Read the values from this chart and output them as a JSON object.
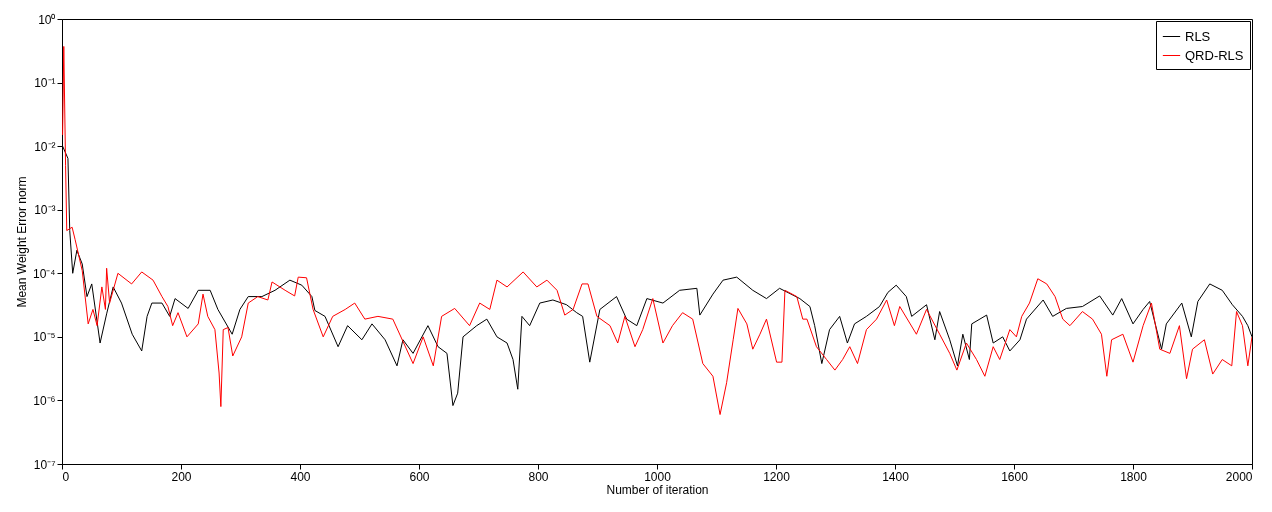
{
  "chart_data": {
    "type": "line",
    "xlabel": "Number of iteration",
    "ylabel": "Mean Weight Error norm",
    "log": true,
    "legend": "top right",
    "xlim": [
      0,
      2000
    ],
    "xticks": [
      0,
      200,
      400,
      600,
      800,
      1000,
      1200,
      1400,
      1600,
      1800,
      2000
    ],
    "ylim": [
      1e-07,
      1
    ],
    "yticks": [
      {
        "value": 1e-07,
        "label": "10⁻⁷"
      },
      {
        "value": 1e-06,
        "label": "10⁻⁶"
      },
      {
        "value": 1e-05,
        "label": "10⁻⁵"
      },
      {
        "value": 0.0001,
        "label": "10⁻⁴"
      },
      {
        "value": 0.001,
        "label": "10⁻³"
      },
      {
        "value": 0.01,
        "label": "10⁻²"
      },
      {
        "value": 0.1,
        "label": "10⁻¹"
      },
      {
        "value": 1,
        "label": "10⁰"
      }
    ],
    "series": [
      {
        "name": "RLS",
        "color": "#000000",
        "x": [
          1,
          10,
          13,
          18,
          25,
          34,
          42,
          50,
          64,
          75,
          86,
          100,
          118,
          134,
          143,
          151,
          168,
          181,
          190,
          212,
          229,
          249,
          262,
          286,
          299,
          313,
          336,
          358,
          383,
          403,
          420,
          425,
          442,
          464,
          480,
          504,
          521,
          543,
          563,
          573,
          590,
          615,
          632,
          647,
          657,
          665,
          674,
          697,
          714,
          731,
          748,
          758,
          766,
          773,
          786,
          803,
          825,
          848,
          865,
          875,
          887,
          904,
          932,
          949,
          966,
          983,
          1010,
          1038,
          1067,
          1072,
          1094,
          1111,
          1134,
          1161,
          1184,
          1206,
          1240,
          1257,
          1265,
          1277,
          1290,
          1307,
          1320,
          1332,
          1352,
          1374,
          1388,
          1402,
          1419,
          1428,
          1453,
          1467,
          1475,
          1492,
          1505,
          1514,
          1525,
          1529,
          1554,
          1565,
          1581,
          1593,
          1610,
          1621,
          1649,
          1665,
          1688,
          1715,
          1744,
          1766,
          1781,
          1800,
          1817,
          1828,
          1848,
          1856,
          1882,
          1898,
          1909,
          1929,
          1950,
          1967,
          1984,
          1993,
          2000
        ],
        "values": [
          0.01,
          0.0064,
          0.00047,
          0.0001,
          0.00023,
          0.00014,
          4.3e-05,
          6.8e-05,
          8e-06,
          2.3e-05,
          6.1e-05,
          3.4e-05,
          1.1e-05,
          6e-06,
          2.1e-05,
          3.4e-05,
          3.4e-05,
          2.1e-05,
          4e-05,
          2.8e-05,
          5.4e-05,
          5.4e-05,
          2.7e-05,
          1.1e-05,
          2.7e-05,
          4.3e-05,
          4.3e-05,
          5.4e-05,
          7.8e-05,
          6.5e-05,
          4.3e-05,
          2.6e-05,
          2.1e-05,
          7e-06,
          1.5e-05,
          9e-06,
          1.6e-05,
          9e-06,
          3.5e-06,
          9e-06,
          5.5e-06,
          1.5e-05,
          7e-06,
          5.5e-06,
          8.3e-07,
          1.3e-06,
          1e-05,
          1.5e-05,
          1.9e-05,
          1e-05,
          8e-06,
          4.4e-06,
          1.5e-06,
          2.1e-05,
          1.5e-05,
          3.4e-05,
          3.8e-05,
          3.2e-05,
          2.4e-05,
          2.1e-05,
          4e-06,
          2.7e-05,
          4.3e-05,
          1.9e-05,
          1.5e-05,
          4e-05,
          3.4e-05,
          5.4e-05,
          5.8e-05,
          2.2e-05,
          4.7e-05,
          7.8e-05,
          8.7e-05,
          5.4e-05,
          4e-05,
          5.8e-05,
          4e-05,
          3e-05,
          1.5e-05,
          3.8e-06,
          1.3e-05,
          2.1e-05,
          8e-06,
          1.6e-05,
          2.1e-05,
          3e-05,
          5e-05,
          6.5e-05,
          4.3e-05,
          2.1e-05,
          3.2e-05,
          9e-06,
          2.5e-05,
          9e-06,
          3.5e-06,
          1.1e-05,
          4.4e-06,
          1.6e-05,
          2.2e-05,
          8e-06,
          1e-05,
          6e-06,
          9e-06,
          1.9e-05,
          3.8e-05,
          2.1e-05,
          2.8e-05,
          3e-05,
          4.4e-05,
          2.2e-05,
          4e-05,
          1.6e-05,
          2.7e-05,
          3.6e-05,
          6.4e-06,
          1.6e-05,
          3.4e-05,
          1e-05,
          3.6e-05,
          6.8e-05,
          5.4e-05,
          3.2e-05,
          2.1e-05,
          1.5e-05,
          1e-05
        ]
      },
      {
        "name": "QRD-RLS",
        "color": "#ff0000",
        "x": [
          1,
          3,
          6,
          8,
          17,
          22,
          34,
          44,
          52,
          59,
          67,
          73,
          75,
          80,
          94,
          117,
          134,
          153,
          168,
          178,
          186,
          195,
          210,
          229,
          237,
          245,
          257,
          264,
          267,
          271,
          279,
          287,
          302,
          313,
          329,
          346,
          353,
          375,
          391,
          397,
          411,
          422,
          439,
          455,
          476,
          492,
          509,
          531,
          556,
          590,
          607,
          624,
          638,
          660,
          685,
          702,
          719,
          731,
          748,
          775,
          798,
          815,
          832,
          845,
          859,
          874,
          884,
          899,
          921,
          934,
          946,
          963,
          976,
          993,
          1010,
          1026,
          1043,
          1060,
          1077,
          1094,
          1106,
          1117,
          1128,
          1136,
          1151,
          1161,
          1173,
          1184,
          1201,
          1210,
          1215,
          1235,
          1245,
          1252,
          1268,
          1285,
          1299,
          1312,
          1324,
          1337,
          1352,
          1369,
          1386,
          1399,
          1408,
          1436,
          1453,
          1475,
          1492,
          1504,
          1520,
          1537,
          1551,
          1565,
          1576,
          1593,
          1604,
          1613,
          1626,
          1640,
          1655,
          1669,
          1682,
          1694,
          1715,
          1732,
          1747,
          1756,
          1764,
          1783,
          1800,
          1817,
          1831,
          1845,
          1862,
          1878,
          1890,
          1900,
          1920,
          1934,
          1950,
          1966,
          1974,
          1984,
          1993,
          2000
        ],
        "values": [
          0.015,
          0.37,
          0.005,
          0.00047,
          0.00053,
          0.00034,
          0.00011,
          1.6e-05,
          2.7e-05,
          1.5e-05,
          6.1e-05,
          2.7e-05,
          0.00012,
          3.4e-05,
          0.0001,
          6.8e-05,
          0.000105,
          7.8e-05,
          4.3e-05,
          3e-05,
          1.5e-05,
          2.4e-05,
          1e-05,
          1.6e-05,
          4.7e-05,
          2.1e-05,
          1.3e-05,
          2.7e-06,
          8e-07,
          1.3e-05,
          1.4e-05,
          5e-06,
          1e-05,
          3.4e-05,
          4.3e-05,
          3.8e-05,
          7.3e-05,
          5.4e-05,
          4.4e-05,
          8.7e-05,
          8.5e-05,
          2.7e-05,
          1e-05,
          2.1e-05,
          2.7e-05,
          3.4e-05,
          1.9e-05,
          2.1e-05,
          1.9e-05,
          3.8e-06,
          1e-05,
          3.5e-06,
          2.1e-05,
          2.8e-05,
          1.5e-05,
          3.4e-05,
          2.7e-05,
          7.8e-05,
          6.1e-05,
          0.000105,
          6.1e-05,
          7.8e-05,
          5.4e-05,
          2.2e-05,
          2.7e-05,
          6.8e-05,
          6.8e-05,
          2.1e-05,
          1.5e-05,
          8e-06,
          2.1e-05,
          7e-06,
          1.3e-05,
          4e-05,
          8e-06,
          1.5e-05,
          2.4e-05,
          1.9e-05,
          3.8e-06,
          2.4e-06,
          6e-07,
          1.9e-06,
          9e-06,
          2.8e-05,
          1.6e-05,
          6.4e-06,
          1.1e-05,
          1.9e-05,
          4e-06,
          4e-06,
          5.4e-05,
          4.3e-05,
          1.9e-05,
          1.9e-05,
          7e-06,
          4.4e-06,
          3e-06,
          4.4e-06,
          7e-06,
          3.8e-06,
          1.3e-05,
          1.9e-05,
          3.8e-05,
          1.5e-05,
          3e-05,
          1.1e-05,
          2.7e-05,
          1.1e-05,
          5.5e-06,
          3e-06,
          8e-06,
          4.4e-06,
          2.4e-06,
          7e-06,
          4.4e-06,
          1.3e-05,
          1e-05,
          2.1e-05,
          3.4e-05,
          8.2e-05,
          6.8e-05,
          4.3e-05,
          1.9e-05,
          1.5e-05,
          2.5e-05,
          1.9e-05,
          1.1e-05,
          2.4e-06,
          9e-06,
          1.1e-05,
          4e-06,
          1.5e-05,
          3.4e-05,
          6.4e-06,
          5.5e-06,
          1.5e-05,
          2.2e-06,
          6.4e-06,
          9e-06,
          2.6e-06,
          4.4e-06,
          3.5e-06,
          2.5e-05,
          1.5e-05,
          3.5e-06,
          1e-05
        ]
      }
    ]
  }
}
